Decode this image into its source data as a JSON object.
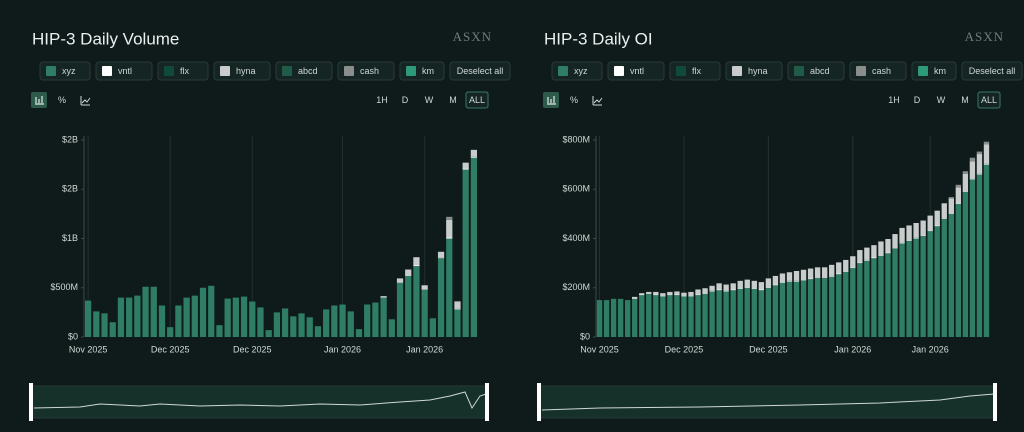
{
  "chart_data": [
    {
      "type": "bar",
      "title": "HIP-3 Daily Volume",
      "brand": "ASXN",
      "percent_label": "%",
      "timeframes": [
        "1H",
        "D",
        "W",
        "M",
        "ALL"
      ],
      "deselect_label": "Deselect all",
      "grid": true,
      "ylim": [
        0,
        2000
      ],
      "yticks": [
        {
          "value": 0,
          "label": "$0"
        },
        {
          "value": 500,
          "label": "$500M"
        },
        {
          "value": 1000,
          "label": "$1B"
        },
        {
          "value": 1500,
          "label": "$2B"
        },
        {
          "value": 2000,
          "label": "$2B"
        }
      ],
      "categories": [
        "Nov 2025",
        null,
        null,
        null,
        null,
        null,
        null,
        null,
        null,
        null,
        "Dec 2025",
        null,
        null,
        null,
        null,
        null,
        null,
        null,
        null,
        null,
        "Dec 2025",
        null,
        null,
        null,
        null,
        null,
        null,
        null,
        null,
        null,
        null,
        "Jan 2026",
        null,
        null,
        null,
        null,
        null,
        null,
        null,
        null,
        null,
        "Jan 2026",
        null,
        null,
        null,
        null,
        null,
        null
      ],
      "series": [
        {
          "name": "xyz",
          "color": "#2e7d64",
          "values": [
            370,
            260,
            240,
            150,
            400,
            400,
            420,
            510,
            510,
            320,
            100,
            320,
            400,
            420,
            500,
            520,
            120,
            390,
            400,
            410,
            360,
            300,
            70,
            250,
            290,
            210,
            240,
            200,
            110,
            280,
            320,
            330,
            260,
            80,
            330,
            350,
            400,
            180,
            550,
            620,
            720,
            480,
            190,
            800,
            1000,
            280,
            1700,
            1820
          ]
        },
        {
          "name": "vntl",
          "color": "#ffffff",
          "values": [
            0,
            0,
            0,
            0,
            0,
            0,
            0,
            0,
            0,
            0,
            0,
            0,
            0,
            0,
            0,
            0,
            0,
            0,
            0,
            0,
            0,
            0,
            0,
            0,
            0,
            0,
            0,
            0,
            0,
            0,
            0,
            0,
            0,
            0,
            0,
            0,
            5,
            0,
            5,
            5,
            10,
            5,
            0,
            5,
            10,
            5,
            10,
            10
          ]
        },
        {
          "name": "flx",
          "color": "#0f4a3a",
          "values": [
            0,
            0,
            0,
            0,
            0,
            0,
            0,
            0,
            0,
            0,
            0,
            0,
            0,
            0,
            0,
            0,
            0,
            0,
            0,
            0,
            0,
            0,
            0,
            0,
            0,
            0,
            0,
            0,
            0,
            0,
            0,
            0,
            0,
            0,
            0,
            0,
            0,
            0,
            0,
            0,
            0,
            0,
            0,
            0,
            0,
            0,
            0,
            0
          ]
        },
        {
          "name": "hyna",
          "color": "#c8cccb",
          "values": [
            0,
            0,
            0,
            0,
            0,
            0,
            0,
            0,
            0,
            0,
            0,
            0,
            0,
            0,
            0,
            0,
            0,
            0,
            0,
            0,
            0,
            0,
            0,
            0,
            0,
            0,
            0,
            0,
            0,
            0,
            0,
            0,
            0,
            0,
            0,
            0,
            10,
            0,
            40,
            60,
            80,
            40,
            0,
            60,
            180,
            70,
            60,
            70
          ]
        },
        {
          "name": "abcd",
          "color": "#1f5c48",
          "values": [
            0,
            0,
            0,
            0,
            0,
            0,
            0,
            0,
            0,
            0,
            0,
            0,
            0,
            0,
            0,
            0,
            0,
            0,
            0,
            0,
            0,
            0,
            0,
            0,
            0,
            0,
            0,
            0,
            0,
            0,
            0,
            0,
            0,
            0,
            0,
            0,
            0,
            0,
            0,
            0,
            0,
            0,
            0,
            0,
            0,
            0,
            0,
            0
          ]
        },
        {
          "name": "cash",
          "color": "#8a8f8e",
          "values": [
            0,
            0,
            0,
            0,
            0,
            0,
            0,
            0,
            0,
            0,
            0,
            0,
            0,
            0,
            0,
            0,
            0,
            0,
            0,
            0,
            0,
            0,
            0,
            0,
            0,
            0,
            0,
            0,
            0,
            0,
            0,
            0,
            0,
            0,
            0,
            0,
            0,
            0,
            0,
            0,
            0,
            0,
            0,
            0,
            30,
            10,
            0,
            0
          ]
        },
        {
          "name": "km",
          "color": "#2e9b78",
          "values": [
            0,
            0,
            0,
            0,
            0,
            0,
            0,
            0,
            0,
            0,
            0,
            0,
            0,
            0,
            0,
            0,
            0,
            0,
            0,
            0,
            0,
            0,
            0,
            0,
            0,
            0,
            0,
            0,
            0,
            0,
            0,
            0,
            0,
            0,
            0,
            0,
            0,
            0,
            0,
            0,
            0,
            0,
            0,
            0,
            0,
            0,
            0,
            0
          ]
        }
      ]
    },
    {
      "type": "bar",
      "title": "HIP-3 Daily OI",
      "brand": "ASXN",
      "percent_label": "%",
      "timeframes": [
        "1H",
        "D",
        "W",
        "M",
        "ALL"
      ],
      "deselect_label": "Deselect all",
      "grid": true,
      "ylim": [
        0,
        800
      ],
      "yticks": [
        {
          "value": 0,
          "label": "$0"
        },
        {
          "value": 200,
          "label": "$200M"
        },
        {
          "value": 400,
          "label": "$400M"
        },
        {
          "value": 600,
          "label": "$600M"
        },
        {
          "value": 800,
          "label": "$800M"
        }
      ],
      "categories": [
        "Nov 2025",
        null,
        null,
        null,
        null,
        null,
        null,
        null,
        null,
        null,
        null,
        null,
        "Dec 2025",
        null,
        null,
        null,
        null,
        null,
        null,
        null,
        null,
        null,
        null,
        null,
        "Dec 2025",
        null,
        null,
        null,
        null,
        null,
        null,
        null,
        null,
        null,
        null,
        null,
        "Jan 2026",
        null,
        null,
        null,
        null,
        null,
        null,
        null,
        null,
        null,
        null,
        "Jan 2026",
        null,
        null,
        null,
        null,
        null,
        null,
        null,
        null
      ],
      "series": [
        {
          "name": "xyz",
          "color": "#2e7d64",
          "values": [
            150,
            150,
            155,
            155,
            150,
            155,
            170,
            175,
            170,
            165,
            170,
            170,
            165,
            165,
            170,
            175,
            185,
            190,
            185,
            190,
            195,
            200,
            195,
            190,
            200,
            210,
            220,
            225,
            225,
            230,
            235,
            240,
            240,
            245,
            255,
            265,
            280,
            300,
            310,
            320,
            330,
            340,
            360,
            380,
            390,
            400,
            410,
            430,
            450,
            480,
            500,
            540,
            590,
            640,
            660,
            700
          ]
        },
        {
          "name": "vntl",
          "color": "#ffffff",
          "values": [
            0,
            0,
            0,
            0,
            0,
            3,
            3,
            3,
            3,
            3,
            3,
            3,
            3,
            3,
            3,
            3,
            3,
            3,
            3,
            3,
            3,
            3,
            3,
            3,
            3,
            3,
            3,
            3,
            3,
            3,
            3,
            3,
            3,
            3,
            3,
            3,
            3,
            3,
            3,
            3,
            3,
            3,
            3,
            3,
            3,
            3,
            3,
            3,
            3,
            3,
            3,
            3,
            3,
            3,
            3,
            3
          ]
        },
        {
          "name": "flx",
          "color": "#0f4a3a",
          "values": [
            0,
            0,
            0,
            0,
            0,
            0,
            0,
            0,
            0,
            0,
            0,
            0,
            0,
            0,
            0,
            0,
            0,
            0,
            0,
            0,
            0,
            0,
            0,
            0,
            0,
            0,
            0,
            0,
            0,
            0,
            0,
            0,
            0,
            0,
            0,
            0,
            0,
            0,
            0,
            0,
            0,
            0,
            0,
            0,
            0,
            0,
            0,
            0,
            0,
            0,
            0,
            0,
            0,
            0,
            0,
            0
          ]
        },
        {
          "name": "hyna",
          "color": "#c8cccb",
          "values": [
            0,
            0,
            0,
            0,
            0,
            5,
            5,
            5,
            10,
            10,
            10,
            12,
            12,
            15,
            20,
            20,
            20,
            25,
            25,
            25,
            30,
            30,
            30,
            30,
            35,
            35,
            35,
            35,
            40,
            40,
            40,
            40,
            40,
            45,
            45,
            45,
            45,
            50,
            50,
            50,
            55,
            55,
            55,
            60,
            60,
            60,
            60,
            60,
            60,
            60,
            60,
            65,
            70,
            70,
            80,
            80
          ]
        },
        {
          "name": "abcd",
          "color": "#1f5c48",
          "values": [
            0,
            0,
            0,
            0,
            0,
            0,
            0,
            0,
            0,
            0,
            0,
            0,
            0,
            0,
            0,
            0,
            0,
            0,
            0,
            0,
            0,
            0,
            0,
            0,
            0,
            0,
            0,
            0,
            0,
            0,
            0,
            0,
            0,
            0,
            0,
            0,
            0,
            0,
            0,
            0,
            0,
            0,
            0,
            0,
            0,
            0,
            0,
            0,
            0,
            0,
            0,
            0,
            0,
            0,
            0,
            0
          ]
        },
        {
          "name": "cash",
          "color": "#8a8f8e",
          "values": [
            0,
            0,
            0,
            0,
            0,
            0,
            0,
            0,
            0,
            0,
            0,
            0,
            0,
            0,
            0,
            0,
            0,
            0,
            0,
            0,
            0,
            0,
            0,
            0,
            0,
            0,
            0,
            0,
            0,
            0,
            0,
            0,
            0,
            0,
            0,
            0,
            0,
            0,
            0,
            0,
            0,
            0,
            0,
            0,
            0,
            0,
            0,
            0,
            0,
            0,
            5,
            10,
            10,
            15,
            10,
            10
          ]
        },
        {
          "name": "km",
          "color": "#2e9b78",
          "values": [
            0,
            0,
            0,
            0,
            0,
            0,
            0,
            0,
            0,
            0,
            0,
            0,
            0,
            0,
            0,
            0,
            0,
            0,
            0,
            0,
            0,
            0,
            0,
            0,
            0,
            0,
            0,
            0,
            0,
            0,
            0,
            0,
            0,
            0,
            0,
            0,
            0,
            0,
            0,
            0,
            0,
            0,
            0,
            0,
            0,
            0,
            0,
            0,
            0,
            0,
            0,
            0,
            0,
            0,
            0,
            0
          ]
        }
      ]
    }
  ]
}
